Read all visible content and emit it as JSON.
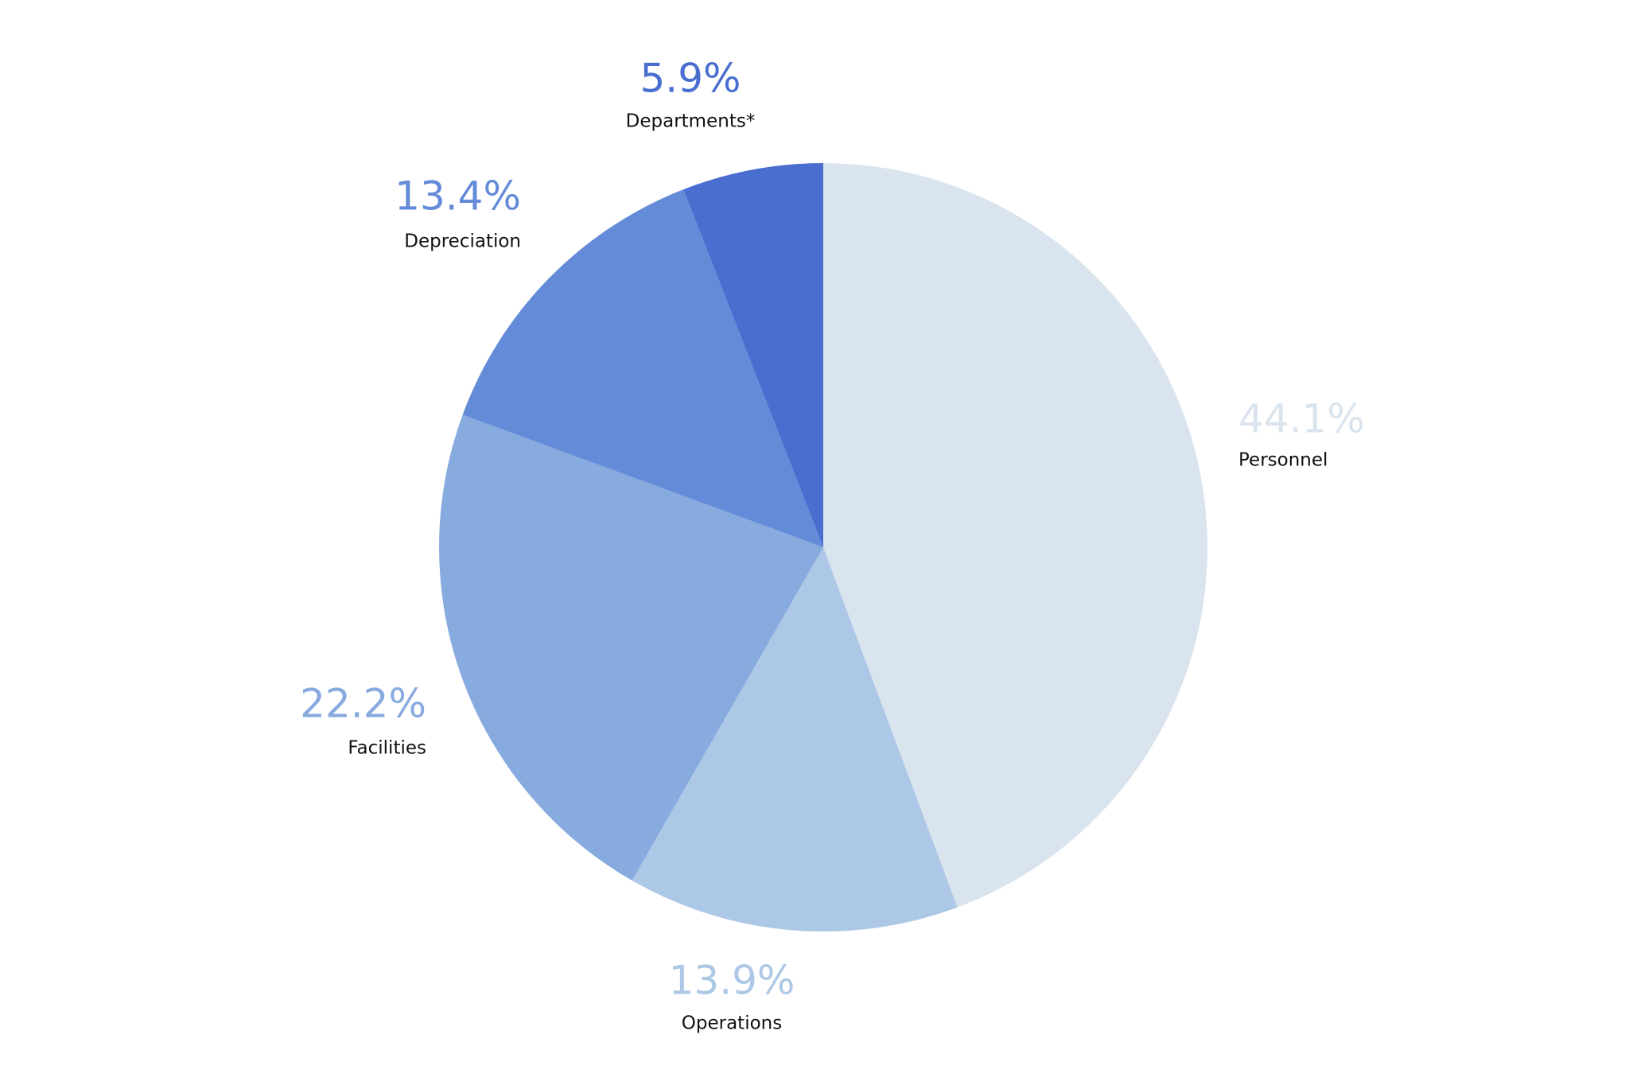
{
  "chart_data": {
    "type": "pie",
    "categories": [
      "Personnel",
      "Operations",
      "Facilities",
      "Depreciation",
      "Departments*"
    ],
    "values": [
      44.1,
      13.9,
      22.2,
      13.4,
      5.9
    ],
    "value_labels": [
      "44.1%",
      "13.9%",
      "22.2%",
      "13.4%",
      "5.9%"
    ],
    "colors": [
      "#dae4ee",
      "#adc7e6",
      "#87aadf",
      "#648bd8",
      "#4a6dd0"
    ]
  }
}
